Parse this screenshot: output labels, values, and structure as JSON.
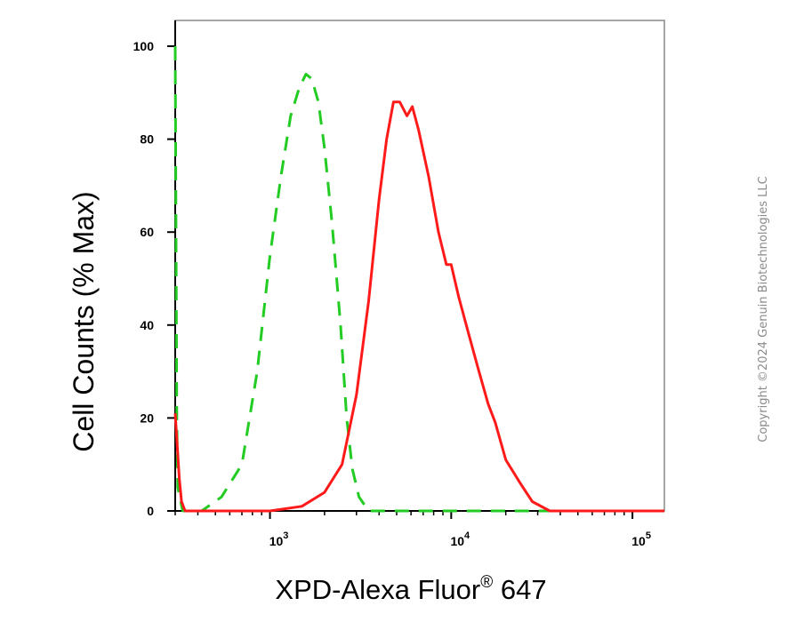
{
  "chart_data": {
    "type": "line",
    "title": "",
    "xlabel": "XPD-Alexa Fluor",
    "xlabel_superscript": "®",
    "xlabel_suffix": " 647",
    "ylabel": "Cell Counts (% Max)",
    "x_scale": "log",
    "xlim": [
      300,
      150000
    ],
    "ylim": [
      0,
      105
    ],
    "yticks": [
      0,
      20,
      40,
      60,
      80,
      100
    ],
    "ytick_labels": [
      "0",
      "20",
      "40",
      "60",
      "80",
      "100"
    ],
    "xticks_major": [
      1000,
      10000,
      100000
    ],
    "xtick_labels": [
      {
        "base": "10",
        "exp": "3"
      },
      {
        "base": "10",
        "exp": "4"
      },
      {
        "base": "10",
        "exp": "5"
      }
    ],
    "grid": false,
    "legend": "none",
    "series": [
      {
        "style": "dashed",
        "color": "#22cc22",
        "points": [
          [
            300,
            100
          ],
          [
            303,
            60
          ],
          [
            306,
            20
          ],
          [
            310,
            5
          ],
          [
            330,
            0
          ],
          [
            420,
            0
          ],
          [
            540,
            3
          ],
          [
            700,
            10
          ],
          [
            850,
            30
          ],
          [
            1000,
            55
          ],
          [
            1150,
            72
          ],
          [
            1300,
            85
          ],
          [
            1450,
            91
          ],
          [
            1580,
            94
          ],
          [
            1700,
            93
          ],
          [
            1850,
            88
          ],
          [
            2000,
            78
          ],
          [
            2200,
            62
          ],
          [
            2450,
            40
          ],
          [
            2650,
            20
          ],
          [
            2850,
            9
          ],
          [
            3100,
            3
          ],
          [
            3500,
            0
          ],
          [
            150000,
            0
          ]
        ]
      },
      {
        "style": "solid",
        "color": "#ff1a1a",
        "points": [
          [
            300,
            21
          ],
          [
            308,
            14
          ],
          [
            316,
            7
          ],
          [
            325,
            2
          ],
          [
            340,
            0
          ],
          [
            1000,
            0
          ],
          [
            1500,
            1
          ],
          [
            2000,
            4
          ],
          [
            2500,
            10
          ],
          [
            3000,
            25
          ],
          [
            3500,
            45
          ],
          [
            4000,
            67
          ],
          [
            4400,
            80
          ],
          [
            4800,
            88
          ],
          [
            5200,
            88
          ],
          [
            5700,
            85
          ],
          [
            6100,
            87
          ],
          [
            6600,
            82
          ],
          [
            7500,
            72
          ],
          [
            8500,
            60
          ],
          [
            9400,
            53
          ],
          [
            10000,
            53
          ],
          [
            11000,
            46
          ],
          [
            12500,
            38
          ],
          [
            14000,
            31
          ],
          [
            16000,
            23
          ],
          [
            17500,
            19
          ],
          [
            20000,
            11
          ],
          [
            24000,
            6
          ],
          [
            28000,
            2
          ],
          [
            35000,
            0
          ],
          [
            150000,
            0
          ]
        ]
      }
    ]
  },
  "watermark": "Copyright ©2024 Genuin Biotechnologies LLC"
}
